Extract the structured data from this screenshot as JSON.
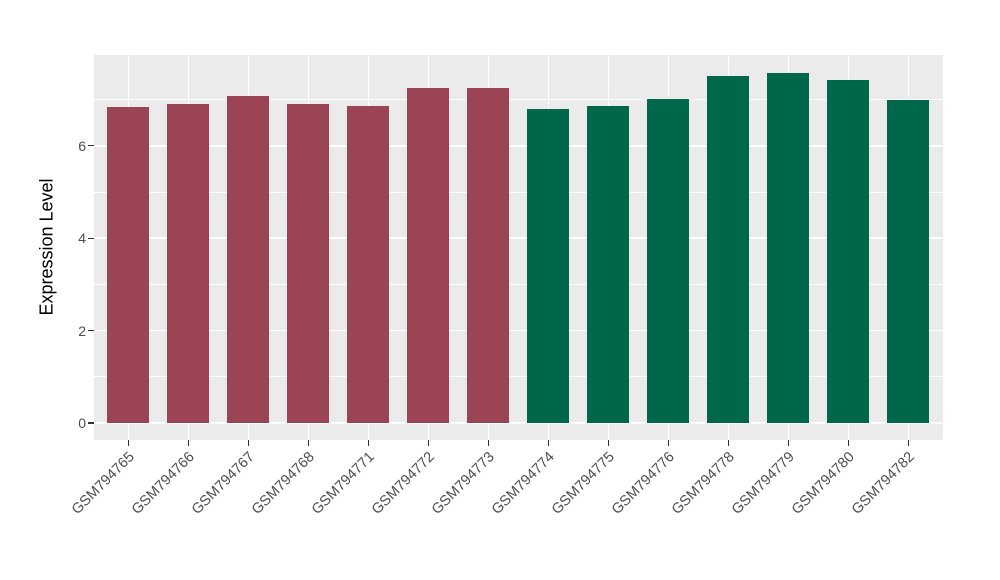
{
  "chart_data": {
    "type": "bar",
    "title": "",
    "xlabel": "",
    "ylabel": "Expression Level",
    "categories": [
      "GSM794765",
      "GSM794766",
      "GSM794767",
      "GSM794768",
      "GSM794771",
      "GSM794772",
      "GSM794773",
      "GSM794774",
      "GSM794775",
      "GSM794776",
      "GSM794778",
      "GSM794779",
      "GSM794780",
      "GSM794782"
    ],
    "values": [
      6.85,
      6.91,
      7.08,
      6.9,
      6.87,
      7.26,
      7.25,
      6.79,
      6.87,
      7.01,
      7.52,
      7.58,
      7.43,
      6.99
    ],
    "groups": [
      "group1",
      "group1",
      "group1",
      "group1",
      "group1",
      "group1",
      "group1",
      "group2",
      "group2",
      "group2",
      "group2",
      "group2",
      "group2",
      "group2"
    ],
    "group_colors": {
      "group1": "#9B4453",
      "group2": "#00684A"
    },
    "y_major_ticks": [
      0,
      2,
      4,
      6
    ],
    "y_minor_ticks": [
      1,
      3,
      5,
      7
    ],
    "ylim": [
      -0.38,
      7.97
    ],
    "grid": true,
    "legend": "none",
    "colors": {
      "panel_background": "#EBEBEB",
      "grid": "#FFFFFF",
      "tick_mark": "#333333",
      "tick_label": "#4D4D4D",
      "axis_title": "#000000",
      "figure_background": "#FFFFFF"
    }
  }
}
